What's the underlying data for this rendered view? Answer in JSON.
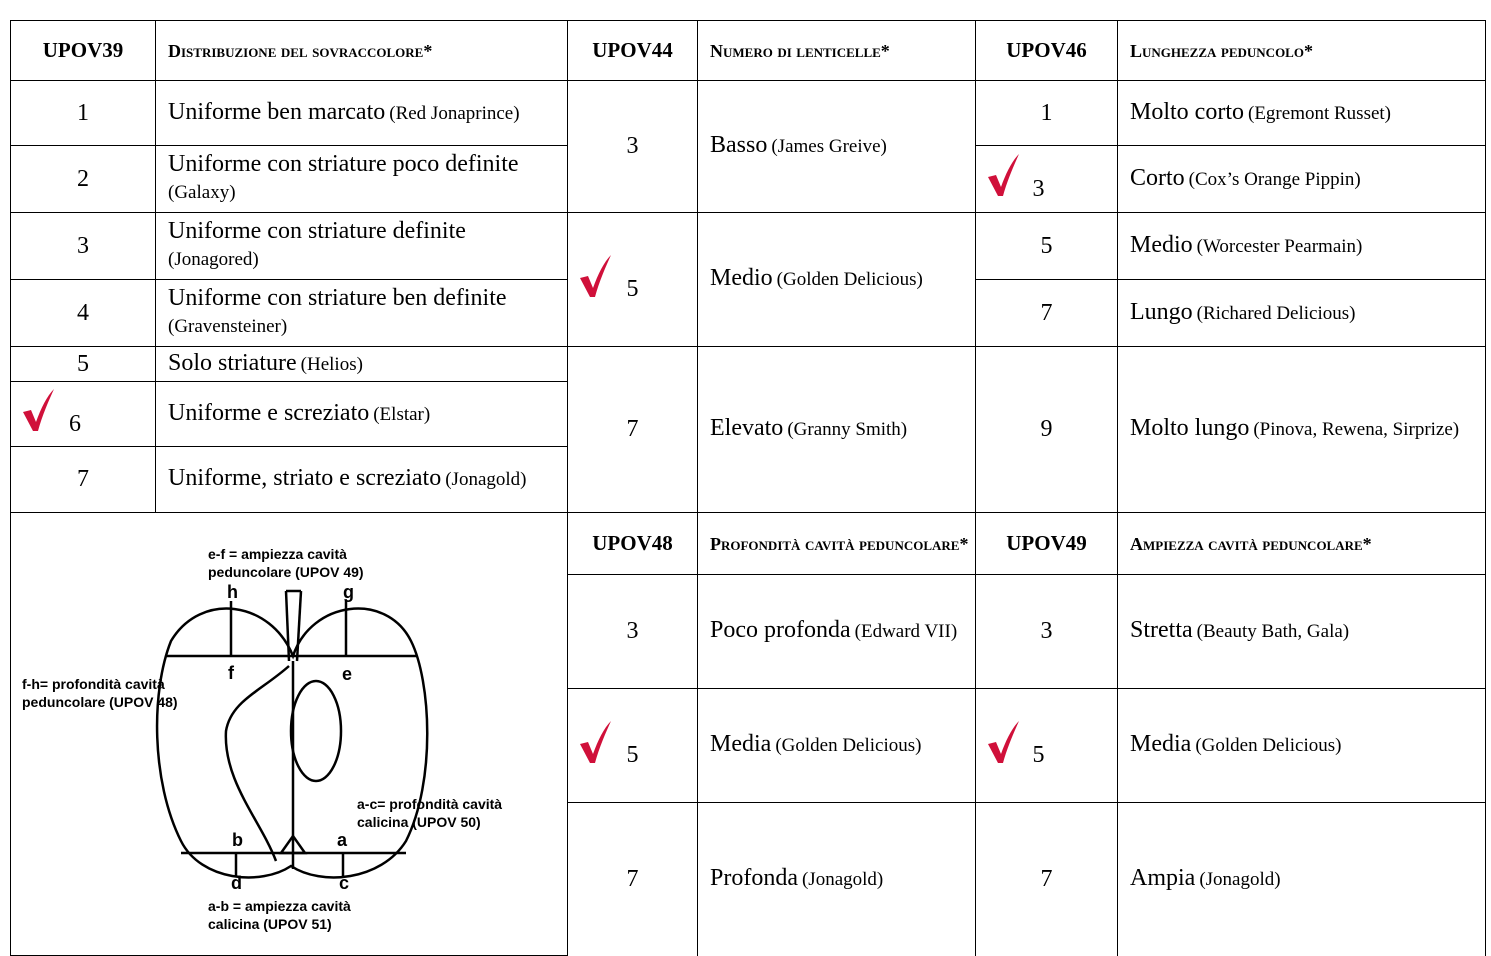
{
  "upov39": {
    "code": "UPOV39",
    "title": "Distribuzione del sovraccolore*",
    "rows": [
      {
        "value": 1,
        "label": "Uniforme ben marcato",
        "example": "(Red Jonaprince)"
      },
      {
        "value": 2,
        "label": "Uniforme con striature poco definite",
        "example": "(Galaxy)"
      },
      {
        "value": 3,
        "label": "Uniforme con striature definite",
        "example": "(Jonagored)"
      },
      {
        "value": 4,
        "label": "Uniforme con striature ben definite",
        "example": "(Gravensteiner)"
      },
      {
        "value": 5,
        "label": "Solo striature",
        "example": "(Helios)"
      },
      {
        "value": 6,
        "label": "Uniforme e screziato",
        "example": "(Elstar)",
        "checked": true
      },
      {
        "value": 7,
        "label": "Uniforme, striato e screziato",
        "example": "(Jonagold)"
      }
    ]
  },
  "upov44": {
    "code": "UPOV44",
    "title": "Numero di lenticelle*",
    "rows": [
      {
        "value": 3,
        "label": "Basso",
        "example": "(James Greive)"
      },
      {
        "value": 5,
        "label": "Medio",
        "example": "(Golden Delicious)",
        "checked": true
      },
      {
        "value": 7,
        "label": "Elevato",
        "example": "(Granny Smith)"
      }
    ]
  },
  "upov46": {
    "code": "UPOV46",
    "title": "Lunghezza peduncolo*",
    "rows": [
      {
        "value": 1,
        "label": "Molto corto",
        "example": "(Egremont Russet)"
      },
      {
        "value": 3,
        "label": "Corto",
        "example": "(Cox’s Orange Pippin)",
        "checked": true
      },
      {
        "value": 5,
        "label": "Medio",
        "example": "(Worcester Pearmain)"
      },
      {
        "value": 7,
        "label": "Lungo",
        "example": "(Richared Delicious)"
      },
      {
        "value": 9,
        "label": "Molto lungo",
        "example": "(Pinova, Rewena, Sirprize)"
      }
    ]
  },
  "upov48": {
    "code": "UPOV48",
    "title": "Profondità cavità peduncolare*",
    "rows": [
      {
        "value": 3,
        "label": "Poco profonda",
        "example": "(Edward VII)"
      },
      {
        "value": 5,
        "label": "Media",
        "example": "(Golden Delicious)",
        "checked": true
      },
      {
        "value": 7,
        "label": "Profonda",
        "example": "(Jonagold)"
      }
    ]
  },
  "upov49": {
    "code": "UPOV49",
    "title": "Ampiezza cavità peduncolare*",
    "rows": [
      {
        "value": 3,
        "label": "Stretta",
        "example": "(Beauty Bath, Gala)"
      },
      {
        "value": 5,
        "label": "Media",
        "example": "(Golden Delicious)",
        "checked": true
      },
      {
        "value": 7,
        "label": "Ampia",
        "example": "(Jonagold)"
      }
    ]
  },
  "diagram": {
    "labels": [
      "e-f = ampiezza cavità peduncolare (UPOV 49)",
      "f-h= profondità cavità peduncolare (UPOV 48)",
      "a-c= profondità cavità calicina (UPOV 50)",
      "a-b = ampiezza cavità calicina (UPOV 51)"
    ],
    "points": [
      "h",
      "g",
      "f",
      "e",
      "b",
      "a",
      "d",
      "c"
    ]
  }
}
